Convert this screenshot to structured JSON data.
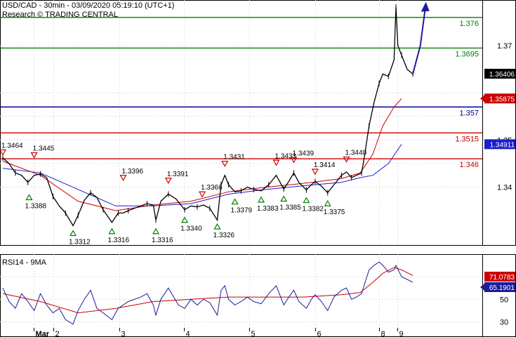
{
  "header": {
    "title": "USD/CAD - 30min - 03/09/2020 05:19:10 (UTC+1)",
    "subtitle": "Research © TRADING CENTRAL"
  },
  "colors": {
    "green_level": "#008000",
    "blue_level": "#00008B",
    "red_level": "#CC0000",
    "price": "#000000",
    "ma_blue": "#1C1CCC",
    "ma_red": "#CC0000",
    "rsi": "#1C1C99",
    "rsi_ma": "#CC0000",
    "arrow": "#1C1C99",
    "up_marker": "#008000",
    "down_marker": "#CC0000"
  },
  "chart_data": [
    {
      "type": "line",
      "name": "price-panel",
      "x_ticks": [
        "Mar",
        "2",
        "3",
        "4",
        "5",
        "6",
        "8",
        "9"
      ],
      "y_ticks": [
        "1.37",
        "1.35",
        "1.34"
      ],
      "ylim": [
        1.3283,
        1.3797
      ],
      "current_price": "1.36406",
      "blue_ma_tag": "1.34911",
      "red_ma_tag": "1.35875",
      "levels": [
        {
          "label": "1.376",
          "value": 1.376,
          "kind": "green"
        },
        {
          "label": "1.3695",
          "value": 1.3695,
          "kind": "green"
        },
        {
          "label": "1.357",
          "value": 1.357,
          "kind": "blue"
        },
        {
          "label": "1.3515",
          "value": 1.3515,
          "kind": "red"
        },
        {
          "label": "1.346",
          "value": 1.346,
          "kind": "red"
        }
      ],
      "pivots": [
        {
          "label": "1.3464",
          "dir": "down",
          "x": 0.0,
          "y": 1.3464
        },
        {
          "label": "1.3445",
          "dir": "down",
          "x": 0.25,
          "y": 1.3458
        },
        {
          "label": "1.3388",
          "dir": "up",
          "x": 0.21,
          "y": 1.3388
        },
        {
          "label": "1.3396",
          "dir": "down",
          "x": 0.96,
          "y": 1.341
        },
        {
          "label": "1.3312",
          "dir": "up",
          "x": 0.56,
          "y": 1.3312
        },
        {
          "label": "1.3316",
          "dir": "up",
          "x": 0.87,
          "y": 1.3316
        },
        {
          "label": "1.3316",
          "dir": "up",
          "x": 1.22,
          "y": 1.3316
        },
        {
          "label": "1.3391",
          "dir": "down",
          "x": 1.32,
          "y": 1.3404
        },
        {
          "label": "1.3340",
          "dir": "up",
          "x": 1.45,
          "y": 1.334
        },
        {
          "label": "1.3366",
          "dir": "down",
          "x": 1.59,
          "y": 1.3375
        },
        {
          "label": "1.3326",
          "dir": "up",
          "x": 1.71,
          "y": 1.3326
        },
        {
          "label": "1.3431",
          "dir": "down",
          "x": 1.77,
          "y": 1.344
        },
        {
          "label": "1.3379",
          "dir": "up",
          "x": 1.85,
          "y": 1.3379
        },
        {
          "label": "1.3383",
          "dir": "up",
          "x": 2.06,
          "y": 1.3383
        },
        {
          "label": "1.3433",
          "dir": "down",
          "x": 2.18,
          "y": 1.3442
        },
        {
          "label": "1.3439",
          "dir": "down",
          "x": 2.32,
          "y": 1.3448
        },
        {
          "label": "1.3385",
          "dir": "up",
          "x": 2.24,
          "y": 1.3385
        },
        {
          "label": "1.3414",
          "dir": "down",
          "x": 2.49,
          "y": 1.3423
        },
        {
          "label": "1.3382",
          "dir": "up",
          "x": 2.42,
          "y": 1.3382
        },
        {
          "label": "1.3440",
          "dir": "down",
          "x": 2.74,
          "y": 1.3449
        },
        {
          "label": "1.3375",
          "dir": "up",
          "x": 2.59,
          "y": 1.3375
        }
      ],
      "price_path": [
        [
          0.0,
          1.3462
        ],
        [
          0.05,
          1.345
        ],
        [
          0.1,
          1.343
        ],
        [
          0.15,
          1.3425
        ],
        [
          0.2,
          1.341
        ],
        [
          0.25,
          1.3425
        ],
        [
          0.3,
          1.3428
        ],
        [
          0.35,
          1.342
        ],
        [
          0.4,
          1.338
        ],
        [
          0.45,
          1.336
        ],
        [
          0.5,
          1.3345
        ],
        [
          0.56,
          1.3318
        ],
        [
          0.6,
          1.334
        ],
        [
          0.65,
          1.3372
        ],
        [
          0.7,
          1.3388
        ],
        [
          0.75,
          1.3378
        ],
        [
          0.8,
          1.3352
        ],
        [
          0.87,
          1.3325
        ],
        [
          0.92,
          1.3345
        ],
        [
          0.96,
          1.3345
        ],
        [
          1.0,
          1.335
        ],
        [
          1.1,
          1.336
        ],
        [
          1.15,
          1.3365
        ],
        [
          1.2,
          1.3362
        ],
        [
          1.22,
          1.333
        ],
        [
          1.26,
          1.337
        ],
        [
          1.32,
          1.3385
        ],
        [
          1.38,
          1.3375
        ],
        [
          1.45,
          1.3352
        ],
        [
          1.5,
          1.336
        ],
        [
          1.55,
          1.3358
        ],
        [
          1.6,
          1.3362
        ],
        [
          1.65,
          1.3355
        ],
        [
          1.71,
          1.333
        ],
        [
          1.74,
          1.3405
        ],
        [
          1.77,
          1.3425
        ],
        [
          1.8,
          1.3405
        ],
        [
          1.85,
          1.339
        ],
        [
          1.9,
          1.3392
        ],
        [
          1.95,
          1.34
        ],
        [
          2.0,
          1.3395
        ],
        [
          2.06,
          1.3392
        ],
        [
          2.12,
          1.3405
        ],
        [
          2.18,
          1.3425
        ],
        [
          2.24,
          1.3396
        ],
        [
          2.28,
          1.3412
        ],
        [
          2.32,
          1.343
        ],
        [
          2.36,
          1.341
        ],
        [
          2.42,
          1.3394
        ],
        [
          2.46,
          1.3405
        ],
        [
          2.49,
          1.3412
        ],
        [
          2.54,
          1.3402
        ],
        [
          2.59,
          1.3388
        ],
        [
          2.64,
          1.3405
        ],
        [
          2.7,
          1.3425
        ],
        [
          2.74,
          1.3432
        ],
        [
          2.78,
          1.342
        ],
        [
          2.82,
          1.3425
        ],
        [
          2.86,
          1.343
        ],
        [
          2.88,
          1.346
        ],
        [
          2.92,
          1.353
        ],
        [
          2.96,
          1.358
        ],
        [
          3.0,
          1.362
        ],
        [
          3.02,
          1.364
        ],
        [
          3.05,
          1.3635
        ],
        [
          3.08,
          1.367
        ],
        [
          3.09,
          1.3782
        ],
        [
          3.1,
          1.37
        ],
        [
          3.12,
          1.368
        ],
        [
          3.15,
          1.365
        ],
        [
          3.18,
          1.364
        ]
      ],
      "ma_blue_path": [
        [
          0.0,
          1.344
        ],
        [
          0.3,
          1.343
        ],
        [
          0.6,
          1.3395
        ],
        [
          0.9,
          1.336
        ],
        [
          1.2,
          1.336
        ],
        [
          1.5,
          1.3365
        ],
        [
          1.8,
          1.3385
        ],
        [
          2.1,
          1.3395
        ],
        [
          2.4,
          1.3403
        ],
        [
          2.7,
          1.341
        ],
        [
          2.85,
          1.342
        ],
        [
          2.95,
          1.3425
        ],
        [
          3.05,
          1.345
        ],
        [
          3.12,
          1.3491
        ]
      ],
      "ma_red_path": [
        [
          0.0,
          1.3455
        ],
        [
          0.3,
          1.3425
        ],
        [
          0.6,
          1.337
        ],
        [
          0.9,
          1.335
        ],
        [
          1.2,
          1.3362
        ],
        [
          1.5,
          1.337
        ],
        [
          1.8,
          1.339
        ],
        [
          2.1,
          1.34
        ],
        [
          2.4,
          1.3408
        ],
        [
          2.7,
          1.3418
        ],
        [
          2.85,
          1.343
        ],
        [
          2.95,
          1.347
        ],
        [
          3.02,
          1.353
        ],
        [
          3.08,
          1.357
        ],
        [
          3.12,
          1.3588
        ]
      ],
      "arrow_path": [
        [
          3.18,
          1.364
        ],
        [
          3.22,
          1.37
        ],
        [
          3.25,
          1.379
        ]
      ]
    },
    {
      "type": "line",
      "name": "rsi-panel",
      "title": "RSI14 - 9MA",
      "y_ticks": [
        "70",
        "50",
        "30"
      ],
      "ylim": [
        26,
        88
      ],
      "rsi_tag": "65.1901",
      "rsi_ma_tag": "71.0783",
      "rsi_path": [
        [
          0.0,
          60
        ],
        [
          0.05,
          48
        ],
        [
          0.1,
          42
        ],
        [
          0.15,
          55
        ],
        [
          0.2,
          48
        ],
        [
          0.25,
          40
        ],
        [
          0.3,
          55
        ],
        [
          0.35,
          45
        ],
        [
          0.4,
          38
        ],
        [
          0.45,
          42
        ],
        [
          0.5,
          32
        ],
        [
          0.56,
          28
        ],
        [
          0.6,
          40
        ],
        [
          0.65,
          50
        ],
        [
          0.7,
          58
        ],
        [
          0.75,
          42
        ],
        [
          0.8,
          38
        ],
        [
          0.87,
          32
        ],
        [
          0.92,
          42
        ],
        [
          1.0,
          48
        ],
        [
          1.1,
          52
        ],
        [
          1.15,
          55
        ],
        [
          1.2,
          45
        ],
        [
          1.22,
          36
        ],
        [
          1.26,
          50
        ],
        [
          1.32,
          60
        ],
        [
          1.4,
          45
        ],
        [
          1.45,
          42
        ],
        [
          1.5,
          50
        ],
        [
          1.55,
          45
        ],
        [
          1.6,
          50
        ],
        [
          1.65,
          47
        ],
        [
          1.71,
          36
        ],
        [
          1.74,
          58
        ],
        [
          1.77,
          62
        ],
        [
          1.8,
          50
        ],
        [
          1.85,
          45
        ],
        [
          1.9,
          48
        ],
        [
          1.95,
          52
        ],
        [
          2.0,
          48
        ],
        [
          2.06,
          46
        ],
        [
          2.12,
          55
        ],
        [
          2.18,
          62
        ],
        [
          2.24,
          45
        ],
        [
          2.28,
          52
        ],
        [
          2.32,
          58
        ],
        [
          2.36,
          48
        ],
        [
          2.42,
          42
        ],
        [
          2.46,
          50
        ],
        [
          2.49,
          54
        ],
        [
          2.54,
          48
        ],
        [
          2.59,
          40
        ],
        [
          2.64,
          52
        ],
        [
          2.7,
          58
        ],
        [
          2.74,
          60
        ],
        [
          2.78,
          50
        ],
        [
          2.82,
          52
        ],
        [
          2.86,
          55
        ],
        [
          2.88,
          62
        ],
        [
          2.92,
          76
        ],
        [
          2.96,
          80
        ],
        [
          3.0,
          83
        ],
        [
          3.02,
          80
        ],
        [
          3.05,
          74
        ],
        [
          3.08,
          76
        ],
        [
          3.09,
          80
        ],
        [
          3.12,
          70
        ],
        [
          3.18,
          65
        ]
      ],
      "rsi_ma_path": [
        [
          0.0,
          55
        ],
        [
          0.3,
          48
        ],
        [
          0.6,
          38
        ],
        [
          0.9,
          42
        ],
        [
          1.2,
          48
        ],
        [
          1.5,
          50
        ],
        [
          1.8,
          52
        ],
        [
          2.1,
          52
        ],
        [
          2.4,
          52
        ],
        [
          2.7,
          54
        ],
        [
          2.85,
          56
        ],
        [
          2.95,
          65
        ],
        [
          3.02,
          73
        ],
        [
          3.08,
          78
        ],
        [
          3.12,
          76
        ],
        [
          3.18,
          71
        ]
      ]
    }
  ]
}
